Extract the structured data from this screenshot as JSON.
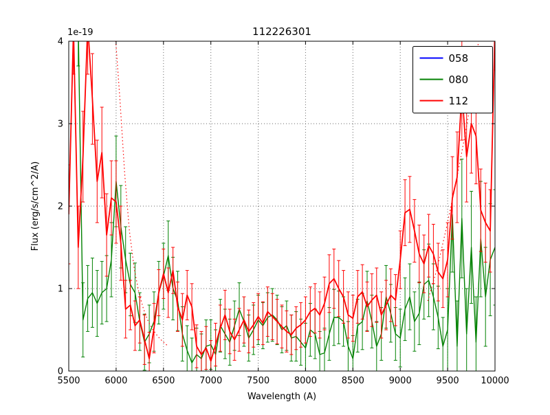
{
  "chart_data": {
    "type": "line",
    "title": "112226301",
    "xlabel": "Wavelength (A)",
    "ylabel": "Flux (erg/s/cm^2/A)",
    "offset_text": "1e-19",
    "flux_scale_note": "y values in units of 1e-19 erg/s/cm^2/A",
    "xlim": [
      5500,
      10000
    ],
    "ylim": [
      0,
      4
    ],
    "xticks": [
      5500,
      6000,
      6500,
      7000,
      7500,
      8000,
      8500,
      9000,
      9500,
      10000
    ],
    "yticks": [
      0,
      1,
      2,
      3,
      4
    ],
    "grid": true,
    "legend_position": "upper right",
    "legend_entries": [
      {
        "label": "058",
        "color": "#0000ff"
      },
      {
        "label": "080",
        "color": "#008000"
      },
      {
        "label": "112",
        "color": "#ff0000"
      }
    ],
    "series": [
      {
        "name": "058",
        "color": "#0000ff",
        "style": "solid",
        "lw": 1.5,
        "visible": false,
        "x_start": 5500,
        "x_step": 50,
        "values": [],
        "err": []
      },
      {
        "name": "080",
        "color": "#008000",
        "style": "solid",
        "lw": 1.4,
        "visible": true,
        "x_start": 5600,
        "x_step": 50,
        "values": [
          4.2,
          0.62,
          0.88,
          0.95,
          0.82,
          0.95,
          1.0,
          1.35,
          2.3,
          1.75,
          1.35,
          1.05,
          0.95,
          0.6,
          0.35,
          0.45,
          0.6,
          0.95,
          1.15,
          1.4,
          1.0,
          0.85,
          0.45,
          0.25,
          0.1,
          0.2,
          0.15,
          0.3,
          0.32,
          0.2,
          0.55,
          0.45,
          0.35,
          0.55,
          0.75,
          0.6,
          0.4,
          0.5,
          0.62,
          0.55,
          0.65,
          0.68,
          0.62,
          0.5,
          0.55,
          0.4,
          0.42,
          0.35,
          0.28,
          0.5,
          0.45,
          0.2,
          0.22,
          0.45,
          0.65,
          0.65,
          0.6,
          0.3,
          0.15,
          0.55,
          0.6,
          0.85,
          0.6,
          0.3,
          0.45,
          0.9,
          0.7,
          0.45,
          0.4,
          0.75,
          0.9,
          0.6,
          0.7,
          1.05,
          1.1,
          0.9,
          0.65,
          0.3,
          0.5,
          1.9,
          0.3,
          1.85,
          0.45,
          1.5,
          0.35,
          1.6,
          0.9,
          1.35,
          1.5
        ],
        "err": [
          0.5,
          0.45,
          0.4,
          0.42,
          0.4,
          0.38,
          0.4,
          0.45,
          0.55,
          0.5,
          0.4,
          0.38,
          0.36,
          0.35,
          0.34,
          0.35,
          0.36,
          0.38,
          0.4,
          0.42,
          0.38,
          0.36,
          0.33,
          0.3,
          0.3,
          0.32,
          0.3,
          0.32,
          0.3,
          0.3,
          0.32,
          0.3,
          0.28,
          0.3,
          0.32,
          0.3,
          0.28,
          0.3,
          0.3,
          0.28,
          0.3,
          0.32,
          0.3,
          0.28,
          0.3,
          0.28,
          0.3,
          0.28,
          0.3,
          0.32,
          0.3,
          0.28,
          0.3,
          0.32,
          0.34,
          0.32,
          0.3,
          0.3,
          0.28,
          0.32,
          0.34,
          0.36,
          0.32,
          0.3,
          0.32,
          0.38,
          0.35,
          0.32,
          0.35,
          0.38,
          0.4,
          0.36,
          0.38,
          0.42,
          0.44,
          0.4,
          0.38,
          0.35,
          0.5,
          0.7,
          0.55,
          0.72,
          0.55,
          0.68,
          0.55,
          0.7,
          0.6,
          0.68,
          0.7
        ]
      },
      {
        "name": "112",
        "color": "#ff0000",
        "style": "solid",
        "lw": 1.8,
        "visible": true,
        "x_start": 5500,
        "x_step": 50,
        "values": [
          1.9,
          4.15,
          1.5,
          2.6,
          4.2,
          3.3,
          2.3,
          2.65,
          1.65,
          2.1,
          2.05,
          1.55,
          0.75,
          0.8,
          0.55,
          0.62,
          0.38,
          0.15,
          0.52,
          0.95,
          1.18,
          0.95,
          1.22,
          0.78,
          0.62,
          0.92,
          0.78,
          0.3,
          0.2,
          0.28,
          0.12,
          0.32,
          0.52,
          0.68,
          0.48,
          0.38,
          0.5,
          0.62,
          0.48,
          0.56,
          0.66,
          0.58,
          0.72,
          0.66,
          0.6,
          0.54,
          0.48,
          0.44,
          0.52,
          0.56,
          0.62,
          0.72,
          0.76,
          0.68,
          0.82,
          1.06,
          1.12,
          1.0,
          0.9,
          0.68,
          0.64,
          0.9,
          0.96,
          0.78,
          0.86,
          0.92,
          0.68,
          0.8,
          0.92,
          0.86,
          1.35,
          1.92,
          1.96,
          1.7,
          1.42,
          1.3,
          1.52,
          1.42,
          1.2,
          1.12,
          1.35,
          2.1,
          2.35,
          3.4,
          2.6,
          3.0,
          2.85,
          1.95,
          1.8,
          1.7,
          4.2
        ],
        "err": [
          0.6,
          0.55,
          0.5,
          0.55,
          0.6,
          0.55,
          0.5,
          0.55,
          0.5,
          0.45,
          0.5,
          0.45,
          0.35,
          0.3,
          0.3,
          0.28,
          0.3,
          0.32,
          0.3,
          0.28,
          0.3,
          0.3,
          0.28,
          0.3,
          0.32,
          0.3,
          0.28,
          0.26,
          0.28,
          0.26,
          0.25,
          0.26,
          0.28,
          0.3,
          0.27,
          0.25,
          0.26,
          0.28,
          0.26,
          0.27,
          0.28,
          0.26,
          0.3,
          0.28,
          0.27,
          0.26,
          0.25,
          0.24,
          0.26,
          0.27,
          0.28,
          0.3,
          0.3,
          0.28,
          0.32,
          0.35,
          0.36,
          0.34,
          0.32,
          0.28,
          0.28,
          0.32,
          0.33,
          0.3,
          0.32,
          0.33,
          0.28,
          0.3,
          0.32,
          0.31,
          0.35,
          0.4,
          0.4,
          0.38,
          0.35,
          0.35,
          0.38,
          0.36,
          0.35,
          0.35,
          0.45,
          0.5,
          0.55,
          0.6,
          0.55,
          0.6,
          0.58,
          0.5,
          0.48,
          0.5,
          0.55
        ]
      },
      {
        "name": "112-dotted",
        "color": "#ff0000",
        "style": "dotted",
        "lw": 1.2,
        "visible": true,
        "segments": [
          {
            "x": [
              5940,
              5990,
              6040,
              6090,
              6140,
              6190,
              6240,
              6290,
              6340,
              6390,
              6440,
              6490,
              6550
            ],
            "values": [
              4.5,
              4.1,
              3.3,
              2.4,
              1.7,
              1.25,
              0.95,
              0.75,
              0.6,
              0.5,
              0.42,
              0.36,
              0.3
            ]
          },
          {
            "x": [
              9290,
              9390,
              9490,
              9590,
              9690,
              9790,
              9860
            ],
            "values": [
              0.85,
              1.25,
              1.75,
              2.3,
              2.9,
              3.6,
              4.4
            ]
          }
        ]
      }
    ]
  }
}
